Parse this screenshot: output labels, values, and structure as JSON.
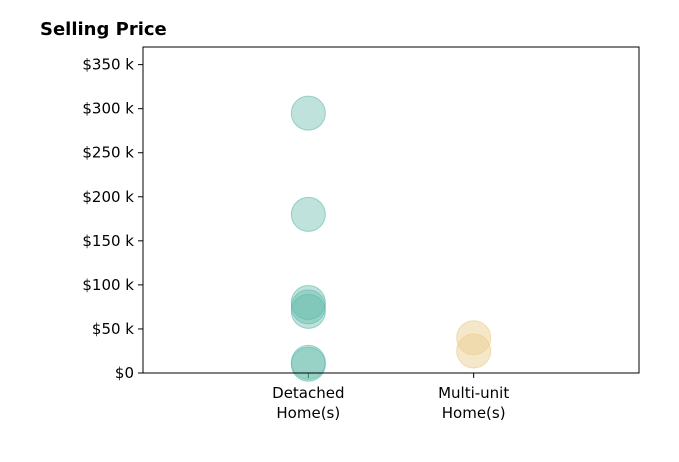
{
  "chart_data": {
    "type": "scatter",
    "title": "Selling Price",
    "xlabel": "",
    "ylabel": "",
    "categories": [
      [
        "Detached",
        "Home(s)"
      ],
      [
        "Multi-unit",
        "Home(s)"
      ]
    ],
    "y_ticks": [
      {
        "value": 0,
        "label": "$0"
      },
      {
        "value": 50000,
        "label": "$50 k"
      },
      {
        "value": 100000,
        "label": "$100 k"
      },
      {
        "value": 150000,
        "label": "$150 k"
      },
      {
        "value": 200000,
        "label": "$200 k"
      },
      {
        "value": 250000,
        "label": "$250 k"
      },
      {
        "value": 300000,
        "label": "$300 k"
      },
      {
        "value": 350000,
        "label": "$350 k"
      }
    ],
    "ylim": [
      0,
      370000
    ],
    "xlim": [
      -1,
      2
    ],
    "grid": false,
    "series": [
      {
        "category_index": 0,
        "color": "#5fb8a8",
        "opacity": 0.4,
        "values": [
          295000,
          180000,
          80000,
          75000,
          70000,
          12000,
          10000
        ]
      },
      {
        "category_index": 1,
        "color": "#ecd093",
        "opacity": 0.5,
        "values": [
          40000,
          25000
        ]
      }
    ]
  }
}
